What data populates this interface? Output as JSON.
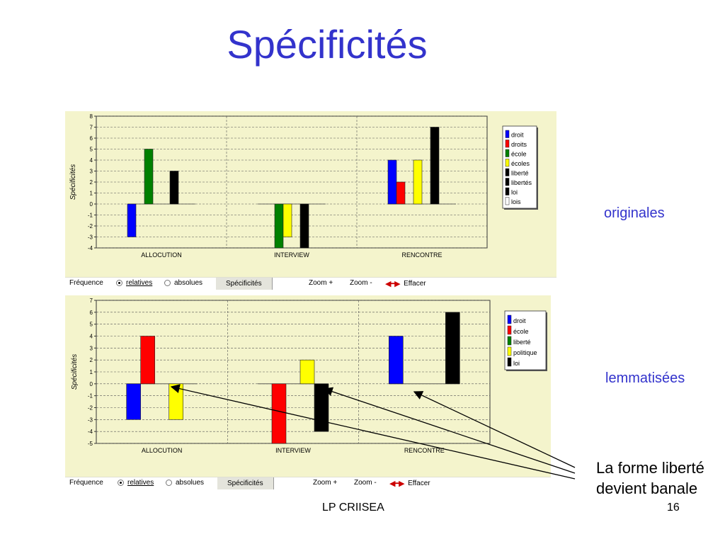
{
  "slide": {
    "title": "Spécificités",
    "label_top": "originales",
    "label_bottom": "lemmatisées",
    "annotation_line1": "La forme liberté",
    "annotation_line2": "devient banale",
    "footer": "LP CRIISEA",
    "page_number": "16"
  },
  "toolbar": {
    "frequency_label": "Fréquence",
    "relatives_label": "relatives",
    "absolues_label": "absolues",
    "specificites_tab": "Spécificités",
    "zoom_in": "Zoom +",
    "zoom_out": "Zoom -",
    "clear": "Effacer"
  },
  "chart_data": [
    {
      "type": "bar",
      "ylabel": "Spécificités",
      "ylim": [
        -4,
        8
      ],
      "yticks": [
        8,
        7,
        6,
        5,
        4,
        3,
        2,
        1,
        0,
        -1,
        -2,
        -3,
        -4
      ],
      "categories": [
        "ALLOCUTION",
        "INTERVIEW",
        "RENCONTRE"
      ],
      "grid": true,
      "legend_position": "top-right",
      "series": [
        {
          "name": "droit",
          "color": "#0000ff",
          "values": [
            -3,
            0,
            4
          ]
        },
        {
          "name": "droits",
          "color": "#ff0000",
          "values": [
            0,
            0,
            2
          ]
        },
        {
          "name": "école",
          "color": "#008000",
          "values": [
            5,
            -4,
            0
          ]
        },
        {
          "name": "écoles",
          "color": "#ffff00",
          "values": [
            0,
            -3,
            4
          ]
        },
        {
          "name": "liberté",
          "color": "#000000",
          "values": [
            0,
            0,
            0
          ]
        },
        {
          "name": "libertés",
          "color": "#000000",
          "values": [
            3,
            -4,
            7
          ]
        },
        {
          "name": "loi",
          "color": "#000000",
          "values": [
            0,
            0,
            0
          ]
        },
        {
          "name": "lois",
          "color": "#ffffff",
          "values": [
            0,
            0,
            0
          ]
        }
      ]
    },
    {
      "type": "bar",
      "ylabel": "Spécificités",
      "ylim": [
        -5,
        7
      ],
      "yticks": [
        7,
        6,
        5,
        4,
        3,
        2,
        1,
        0,
        -1,
        -2,
        -3,
        -4,
        -5
      ],
      "categories": [
        "ALLOCUTION",
        "INTERVIEW",
        "RENCONTRE"
      ],
      "grid": true,
      "legend_position": "top-right",
      "series": [
        {
          "name": "droit",
          "color": "#0000ff",
          "values": [
            -3,
            0,
            4
          ]
        },
        {
          "name": "école",
          "color": "#ff0000",
          "values": [
            4,
            -5,
            0
          ]
        },
        {
          "name": "liberté",
          "color": "#008000",
          "values": [
            0,
            0,
            0
          ]
        },
        {
          "name": "politique",
          "color": "#ffff00",
          "values": [
            -3,
            2,
            0
          ]
        },
        {
          "name": "loi",
          "color": "#000000",
          "values": [
            0,
            -4,
            6
          ]
        }
      ]
    }
  ]
}
